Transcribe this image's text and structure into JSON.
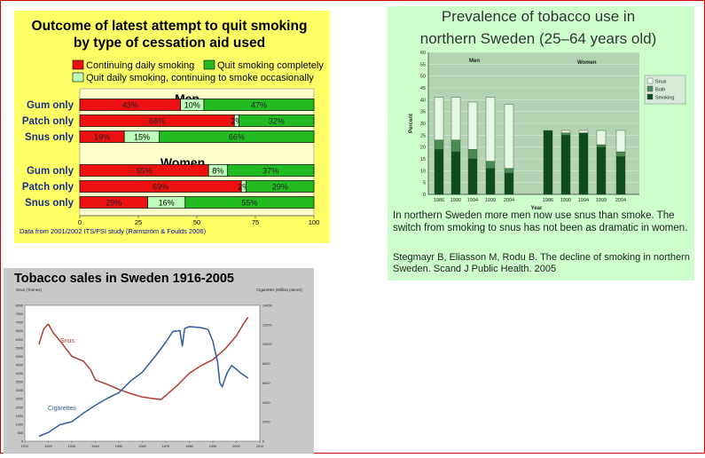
{
  "colors": {
    "red": "#ee1111",
    "green": "#22bb22",
    "lightgreen": "#bbffbb",
    "yellow_bg": "#ffff66",
    "panel2_bg": "#ccffcc",
    "snus_line": "#b03a2e",
    "cig_line": "#2e5c9e",
    "bar_dark": "#0e4d1e",
    "bar_mid": "#4a8a55",
    "bar_light": "#e6f7e6"
  },
  "chart_data": [
    {
      "type": "bar",
      "title_line1": "Outcome of latest attempt to quit smoking",
      "title_line2": "by type of cessation aid used",
      "legend": {
        "continuing": "Continuing daily smoking",
        "quit": "Quit smoking completely",
        "occasional": "Quit daily  smoking, continuing to smoke occasionally"
      },
      "group_men": "Men",
      "group_women": "Women",
      "categories": [
        "Gum only",
        "Patch only",
        "Snus only",
        "Gum only",
        "Patch only",
        "Snus only"
      ],
      "series": [
        {
          "name": "Continuing daily smoking",
          "values": [
            43,
            66,
            19,
            55,
            69,
            29
          ]
        },
        {
          "name": "Quit daily  smoking, continuing to smoke occasionally",
          "values": [
            10,
            2,
            15,
            8,
            2,
            16
          ]
        },
        {
          "name": "Quit smoking completely",
          "values": [
            47,
            32,
            66,
            37,
            29,
            55
          ]
        }
      ],
      "labels": [
        [
          "43%",
          "10%",
          "47%"
        ],
        [
          "66%",
          "2%",
          "32%"
        ],
        [
          "19%",
          "15%",
          "66%"
        ],
        [
          "55%",
          "8%",
          "37%"
        ],
        [
          "69%",
          "2%",
          "29%"
        ],
        [
          "29%",
          "16%",
          "55%"
        ]
      ],
      "xlim": [
        0,
        100
      ],
      "xticks": [
        "0",
        "25",
        "50",
        "75",
        "100"
      ],
      "source": "Data from 2001/2002  ITS/FSI study  (Ramström & Foulds 2006)"
    },
    {
      "type": "bar",
      "title_line1": "Prevalence of tobacco use in",
      "title_line2": "northern Sweden (25–64 years old)",
      "ylabel": "Percent",
      "xlabel": "Year",
      "ylim": [
        0,
        60
      ],
      "yticks": [
        "0",
        "5",
        "10",
        "15",
        "20",
        "25",
        "30",
        "35",
        "40",
        "45",
        "50",
        "55",
        "60"
      ],
      "group_men": "Men",
      "group_women": "Women",
      "categories": [
        "1986",
        "1990",
        "1994",
        "1999",
        "2004",
        "1986",
        "1990",
        "1994",
        "1999",
        "2004"
      ],
      "series": [
        {
          "name": "Smoking",
          "values": [
            19,
            18,
            15,
            11,
            9,
            27,
            25,
            26,
            20,
            16
          ]
        },
        {
          "name": "Both",
          "values": [
            4,
            5,
            4,
            3,
            2,
            0,
            1,
            0,
            1,
            2
          ]
        },
        {
          "name": "Snus",
          "values": [
            18,
            18,
            20,
            27,
            27,
            0,
            1,
            1,
            6,
            9
          ]
        }
      ],
      "legend": [
        "Snus",
        "Both",
        "Smoking"
      ],
      "note": "In northern Sweden more men now use snus than smoke. The switch from smoking to snus has not been as dramatic in women.",
      "citation": "Stegmayr B, Eliasson M, Rodu B.  The decline of smoking in northern Sweden.  Scand J Public Health. 2005"
    },
    {
      "type": "line",
      "title": "Tobacco sales in  Sweden 1916-2005",
      "ylabel_left": "Snus (Tonnes)",
      "ylabel_right": "Cigarettes (Million pieces)",
      "xlim": [
        1910,
        2010
      ],
      "ylim_left": [
        0,
        8000
      ],
      "ylim_right": [
        0,
        14000
      ],
      "xticks": [
        "1910",
        "1920",
        "1930",
        "1940",
        "1950",
        "1960",
        "1970",
        "1980",
        "1990",
        "2000",
        "2010"
      ],
      "yticks_left": [
        "0",
        "500",
        "1000",
        "1500",
        "2000",
        "2500",
        "3000",
        "3500",
        "4000",
        "4500",
        "5000",
        "5500",
        "6000",
        "6500",
        "7000",
        "7500",
        "8000"
      ],
      "yticks_right": [
        "0",
        "2000",
        "4000",
        "6000",
        "8000",
        "10000",
        "12000",
        "14000"
      ],
      "series": [
        {
          "name": "Snus",
          "axis": "left",
          "x": [
            1916,
            1918,
            1920,
            1922,
            1925,
            1930,
            1935,
            1938,
            1940,
            1945,
            1950,
            1955,
            1960,
            1965,
            1968,
            1970,
            1975,
            1980,
            1985,
            1990,
            1995,
            2000,
            2003,
            2005
          ],
          "y": [
            5700,
            6600,
            6900,
            6400,
            5900,
            5000,
            4700,
            4200,
            3600,
            3350,
            3050,
            2800,
            2600,
            2500,
            2450,
            2700,
            3300,
            4000,
            4450,
            4800,
            5400,
            6200,
            6900,
            7300
          ]
        },
        {
          "name": "Cigarettes",
          "axis": "right",
          "x": [
            1916,
            1920,
            1925,
            1930,
            1935,
            1940,
            1945,
            1950,
            1955,
            1960,
            1965,
            1970,
            1973,
            1976,
            1977,
            1978,
            1980,
            1985,
            1988,
            1990,
            1992,
            1993,
            1994,
            1996,
            1998,
            2000,
            2002,
            2005
          ],
          "y": [
            500,
            900,
            1700,
            2000,
            2900,
            3700,
            4400,
            5000,
            6200,
            7100,
            8600,
            10200,
            11300,
            11400,
            9800,
            11600,
            11800,
            11700,
            11500,
            10300,
            8200,
            6000,
            5600,
            7000,
            7800,
            7400,
            7000,
            6500
          ]
        }
      ]
    }
  ]
}
